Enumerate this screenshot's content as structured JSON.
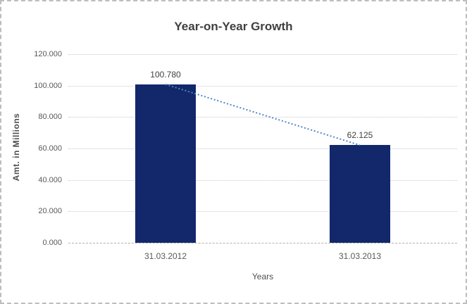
{
  "window": {
    "background": "#ffffff",
    "border_color": "#bdbdbd",
    "border_style": "dashed"
  },
  "chart_data": {
    "type": "bar",
    "title": "Year-on-Year Growth",
    "xlabel": "Years",
    "ylabel": "Amt. in Millions",
    "categories": [
      "31.03.2012",
      "31.03.2013"
    ],
    "series": [
      {
        "name": "Amt. in Millions",
        "values": [
          100.78,
          62.125
        ]
      }
    ],
    "value_labels": [
      "100.780",
      "62.125"
    ],
    "ylim": [
      0,
      120
    ],
    "ytick_labels": [
      "120.000",
      "100.000",
      "80.000",
      "60.000",
      "40.000",
      "20.000",
      "0.000"
    ],
    "grid": true,
    "gridline_style": "dotted",
    "legend_position": "none",
    "trendline": {
      "style": "dotted",
      "color": "#4e87c9",
      "from_value": 100.78,
      "to_value": 62.125
    },
    "colors": {
      "bar": "#12286b",
      "gridline": "#c9c9c9",
      "axis_line": "#b0b0b0",
      "title_text": "#3f3f3f",
      "tick_text": "#595959"
    }
  }
}
